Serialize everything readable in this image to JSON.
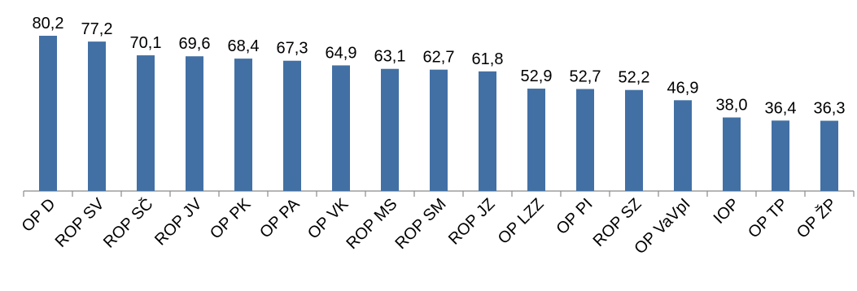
{
  "chart_data": {
    "type": "bar",
    "categories": [
      "OP D",
      "ROP SV",
      "ROP SČ",
      "ROP JV",
      "OP PK",
      "OP PA",
      "OP VK",
      "ROP MS",
      "ROP SM",
      "ROP JZ",
      "OP LZZ",
      "OP PI",
      "ROP SZ",
      "OP VaVpI",
      "IOP",
      "OP TP",
      "OP ŽP"
    ],
    "values": [
      80.2,
      77.2,
      70.1,
      69.6,
      68.4,
      67.3,
      64.9,
      63.1,
      62.7,
      61.8,
      52.9,
      52.7,
      52.2,
      46.9,
      38.0,
      36.4,
      36.3
    ],
    "value_labels": [
      "80,2",
      "77,2",
      "70,1",
      "69,6",
      "68,4",
      "67,3",
      "64,9",
      "63,1",
      "62,7",
      "61,8",
      "52,9",
      "52,7",
      "52,2",
      "46,9",
      "38,0",
      "36,4",
      "36,3"
    ],
    "title": "",
    "xlabel": "",
    "ylabel": "",
    "ylim": [
      0,
      85
    ],
    "grid": false,
    "legend": "none",
    "bar_color": "#4270A4"
  }
}
